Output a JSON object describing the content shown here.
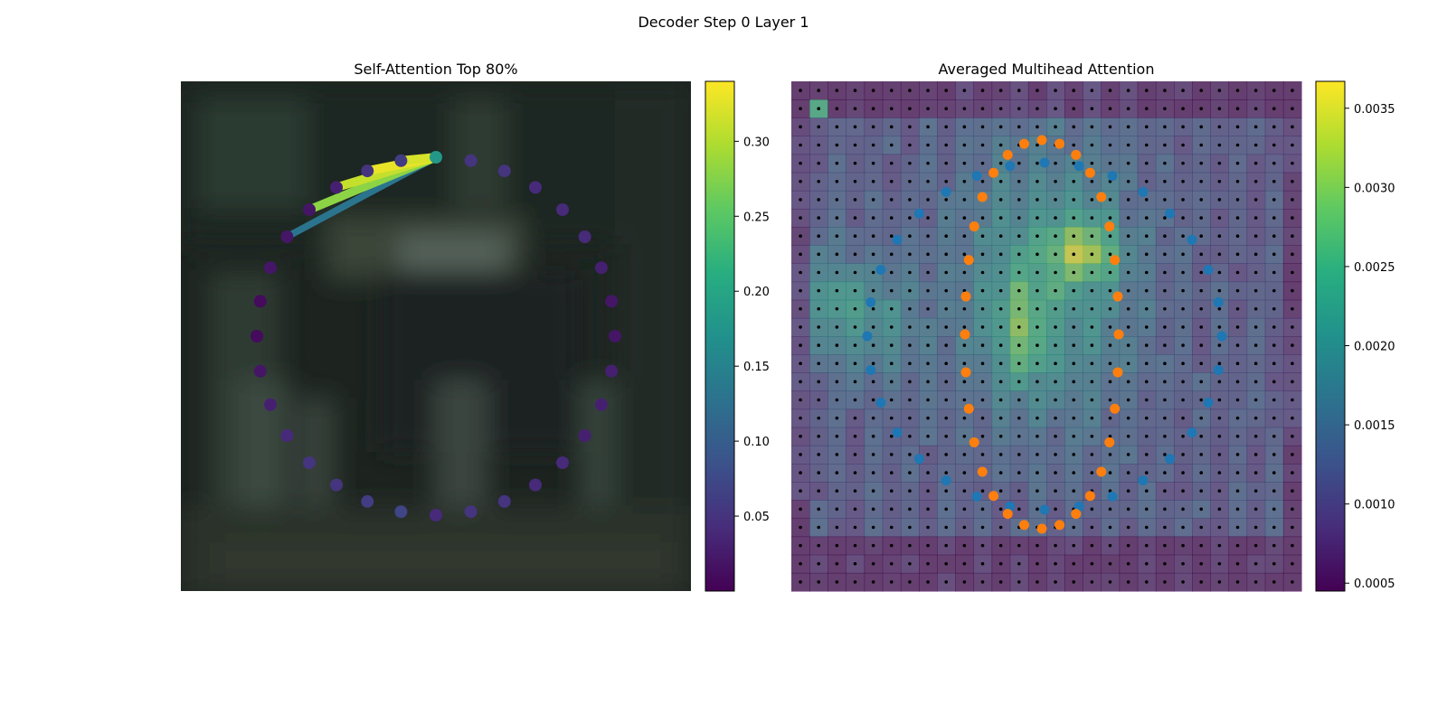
{
  "figure_title": "Decoder Step 0 Layer 1",
  "chart_data": [
    {
      "type": "scatter",
      "title": "Self-Attention Top 80%",
      "background": "blurred photograph",
      "axes_visible": false,
      "colormap": "viridis",
      "colorbar": {
        "min": 0.0,
        "max": 0.34,
        "ticks": [
          0.05,
          0.1,
          0.15,
          0.2,
          0.25,
          0.3
        ],
        "tick_labels": [
          "0.05",
          "0.10",
          "0.15",
          "0.20",
          "0.25",
          "0.30"
        ]
      },
      "points_count": 32,
      "point_values": [
        0.04,
        0.07,
        0.06,
        0.05,
        0.05,
        0.04,
        0.03,
        0.02,
        0.01,
        0.01,
        0.02,
        0.02,
        0.02,
        0.03,
        0.05,
        0.06,
        0.18,
        0.05,
        0.05,
        0.04,
        0.04,
        0.04,
        0.03,
        0.02,
        0.02,
        0.03,
        0.03,
        0.03,
        0.04,
        0.04,
        0.05,
        0.05
      ],
      "query_point": 16,
      "attention_edges": [
        {
          "to": 11,
          "value": 0.13
        },
        {
          "to": 12,
          "value": 0.28
        },
        {
          "to": 13,
          "value": 0.31
        },
        {
          "to": 14,
          "value": 0.33
        },
        {
          "to": 15,
          "value": 0.32
        },
        {
          "to": 16,
          "value": 0.2
        }
      ]
    },
    {
      "type": "heatmap",
      "title": "Averaged Multihead Attention",
      "axes_visible": false,
      "grid": [
        28,
        28
      ],
      "colormap": "viridis",
      "colorbar": {
        "min": 0.00045,
        "max": 0.00367,
        "ticks": [
          0.0005,
          0.001,
          0.0015,
          0.002,
          0.0025,
          0.003,
          0.0035
        ],
        "tick_labels": [
          "0.0005",
          "0.0010",
          "0.0015",
          "0.0020",
          "0.0025",
          "0.0030",
          "0.0035"
        ]
      },
      "overlay": {
        "reference_points": "black dots at each grid cell",
        "series": [
          {
            "color": "#1f77b4",
            "count": 32,
            "shape": "large ring"
          },
          {
            "color": "#ff7f0e",
            "count": 32,
            "shape": "inner ring"
          }
        ]
      }
    }
  ]
}
